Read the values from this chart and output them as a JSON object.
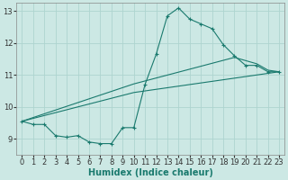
{
  "xlabel": "Humidex (Indice chaleur)",
  "xlim": [
    -0.5,
    23.5
  ],
  "ylim": [
    8.5,
    13.25
  ],
  "yticks": [
    9,
    10,
    11,
    12,
    13
  ],
  "xticks": [
    0,
    1,
    2,
    3,
    4,
    5,
    6,
    7,
    8,
    9,
    10,
    11,
    12,
    13,
    14,
    15,
    16,
    17,
    18,
    19,
    20,
    21,
    22,
    23
  ],
  "bg_color": "#cce8e4",
  "line_color": "#1a7a6e",
  "grid_color": "#aed4cf",
  "line1_x": [
    0,
    1,
    2,
    3,
    4,
    5,
    6,
    7,
    8,
    9,
    10,
    11,
    12,
    13,
    14,
    15,
    16,
    17,
    18,
    19,
    20,
    21,
    22,
    23
  ],
  "line1_y": [
    9.55,
    9.45,
    9.45,
    9.1,
    9.05,
    9.1,
    8.9,
    8.85,
    8.85,
    9.35,
    9.35,
    10.7,
    11.65,
    12.85,
    13.1,
    12.75,
    12.6,
    12.45,
    11.95,
    11.6,
    11.3,
    11.3,
    11.1,
    11.1
  ],
  "line2_x": [
    0,
    10,
    19,
    21,
    22,
    23
  ],
  "line2_y": [
    9.55,
    10.72,
    11.55,
    11.35,
    11.15,
    11.1
  ],
  "line3_x": [
    0,
    10,
    23
  ],
  "line3_y": [
    9.55,
    10.45,
    11.1
  ]
}
